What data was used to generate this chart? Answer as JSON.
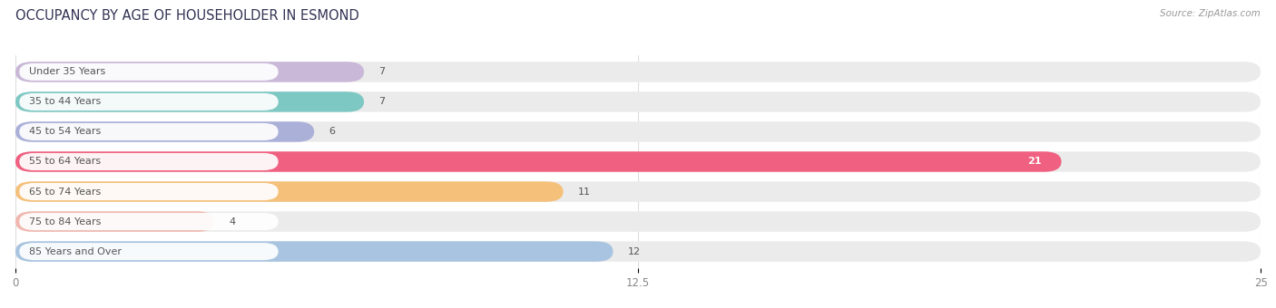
{
  "title": "OCCUPANCY BY AGE OF HOUSEHOLDER IN ESMOND",
  "source": "Source: ZipAtlas.com",
  "categories": [
    "Under 35 Years",
    "35 to 44 Years",
    "45 to 54 Years",
    "55 to 64 Years",
    "65 to 74 Years",
    "75 to 84 Years",
    "85 Years and Over"
  ],
  "values": [
    7,
    7,
    6,
    21,
    11,
    4,
    12
  ],
  "bar_colors": [
    "#c9b8d8",
    "#7ec8c4",
    "#aab0d8",
    "#f06080",
    "#f5c07a",
    "#f0b8b0",
    "#a8c4e0"
  ],
  "background_color": "#ffffff",
  "bar_background_color": "#ebebeb",
  "label_bg_color": "#ffffff",
  "xlim": [
    0,
    25
  ],
  "xticks": [
    0,
    12.5,
    25
  ],
  "title_fontsize": 10.5,
  "label_fontsize": 8.0,
  "value_fontsize": 8.0,
  "bar_height": 0.68,
  "fig_width": 14.06,
  "fig_height": 3.4
}
